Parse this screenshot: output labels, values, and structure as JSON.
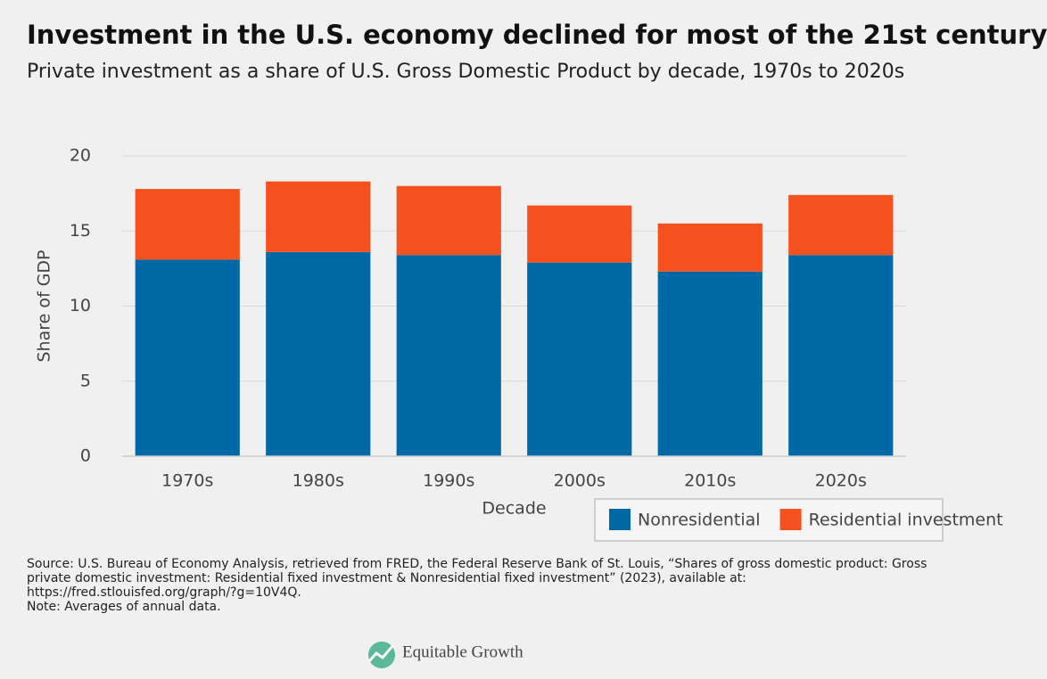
{
  "chart_data": {
    "type": "stacked-bar",
    "title": "Investment in the U.S. economy declined for most of the 21st century",
    "subtitle": "Private investment as a share of U.S. Gross Domestic Product by decade, 1970s to 2020s",
    "x_label": "Decade",
    "y_label": "Share of GDP",
    "categories": [
      "1970s",
      "1980s",
      "1990s",
      "2000s",
      "2010s",
      "2020s"
    ],
    "series": [
      {
        "name": "Nonresidential",
        "color": "#0068a5",
        "values": [
          13.1,
          13.6,
          13.4,
          12.9,
          12.3,
          13.4
        ]
      },
      {
        "name": "Residential investment",
        "color": "#f4511e",
        "values": [
          4.7,
          4.7,
          4.6,
          3.8,
          3.2,
          4.0
        ]
      }
    ],
    "ylim": [
      0,
      20
    ],
    "yticks": [
      0,
      5,
      10,
      15,
      20
    ],
    "grid": true,
    "legend": "bottom-right"
  },
  "source": "Source: U.S. Bureau of Economy Analysis, retrieved from FRED, the Federal Reserve Bank of St. Louis, “Shares of gross domestic product: Gross private domestic investment: Residential fixed investment & Nonresidential fixed investment” (2023), available at: https://fred.stlouisfed.org/graph/?g=10V4Q.",
  "note": "Note: Averages of annual data.",
  "brand": "Equitable Growth"
}
